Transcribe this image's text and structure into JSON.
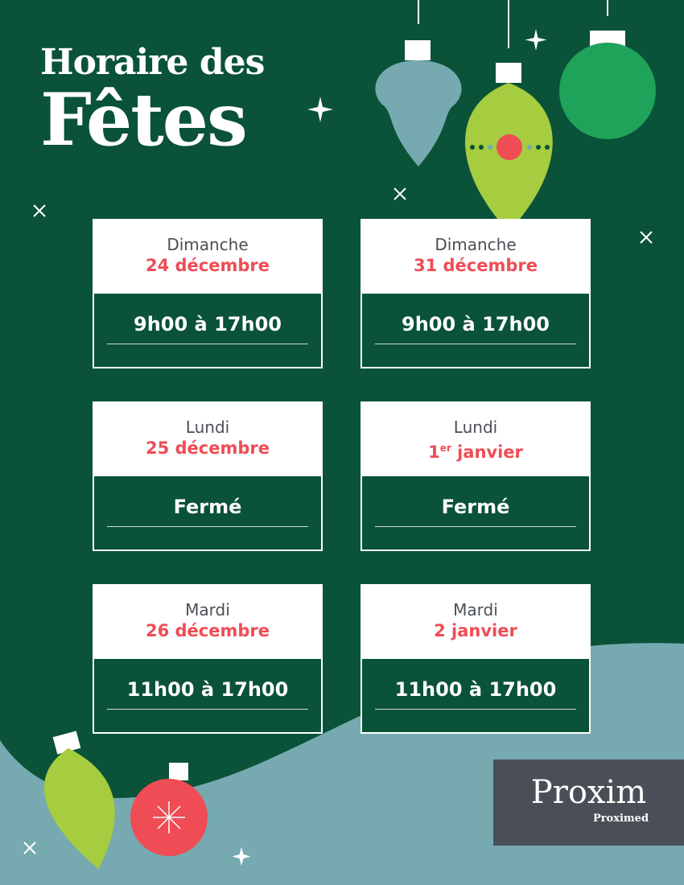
{
  "title": {
    "line1": "Horaire des",
    "line2": "Fêtes"
  },
  "colors": {
    "background": "#0a5238",
    "accent_red": "#ef4c55",
    "teal": "#76a9b0",
    "lime": "#a6cc3f",
    "logo_bg": "#4a4f57"
  },
  "schedule": [
    {
      "day": "Dimanche",
      "date": "24 décembre",
      "hours": "9h00 à 17h00"
    },
    {
      "day": "Dimanche",
      "date": "31 décembre",
      "hours": "9h00 à 17h00"
    },
    {
      "day": "Lundi",
      "date": "25 décembre",
      "hours": "Fermé"
    },
    {
      "day": "Lundi",
      "date_num": "1",
      "date_sup": "er",
      "date_rest": " janvier",
      "hours": "Fermé"
    },
    {
      "day": "Mardi",
      "date": "26 décembre",
      "hours": "11h00 à 17h00"
    },
    {
      "day": "Mardi",
      "date": "2 janvier",
      "hours": "11h00 à 17h00"
    }
  ],
  "logo": {
    "brand": "Proxim",
    "sub_brand": "Proximed"
  }
}
